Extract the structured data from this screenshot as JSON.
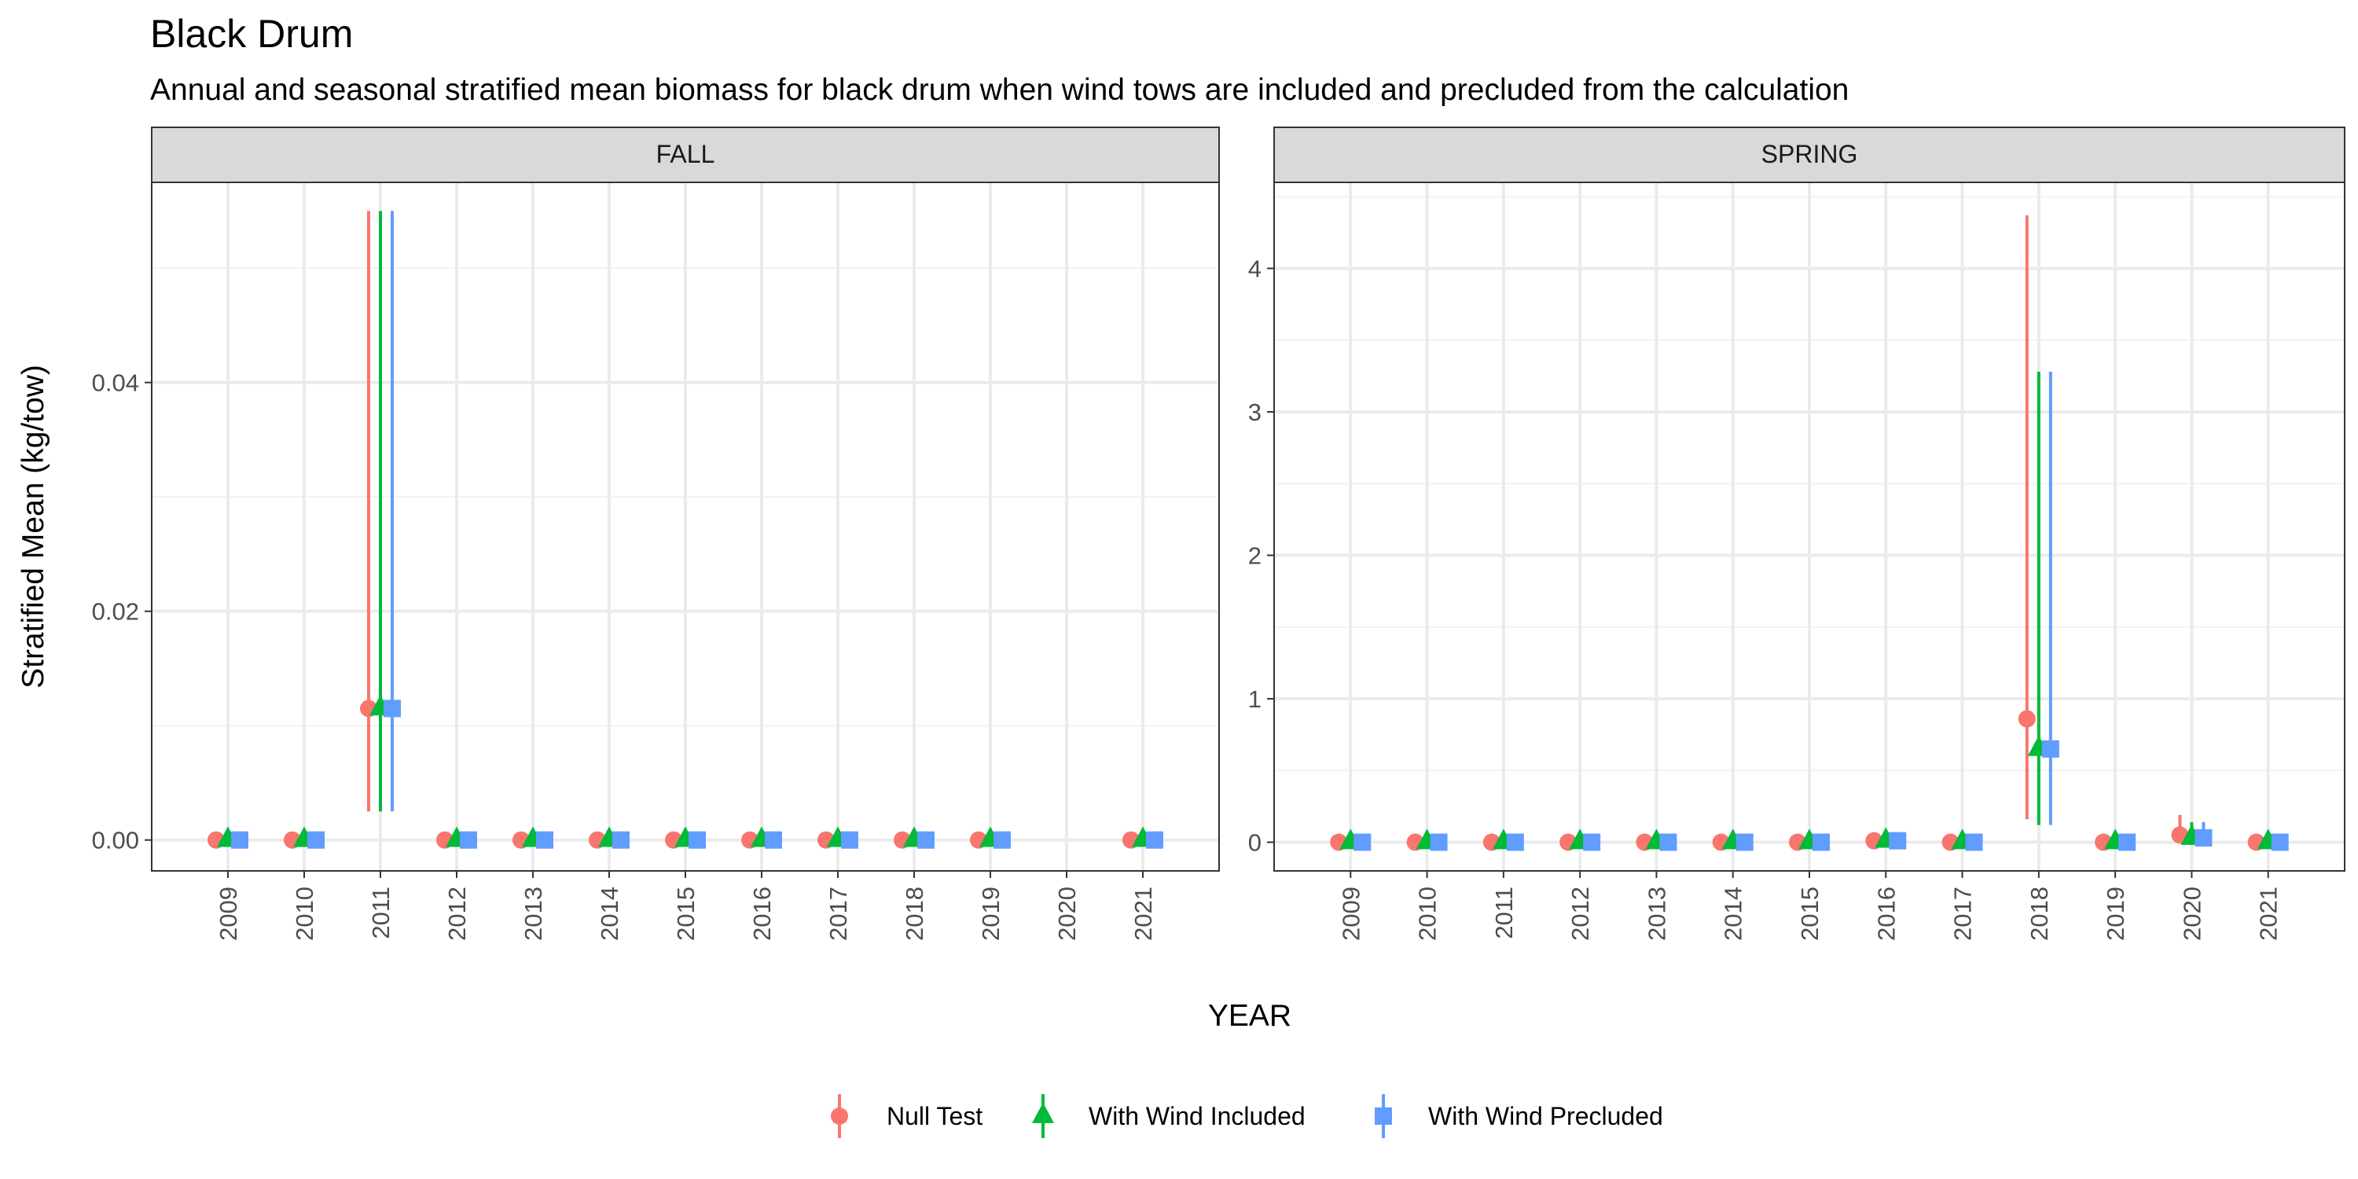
{
  "chart_data": {
    "type": "scatter",
    "title": "Black Drum",
    "subtitle": "Annual and seasonal stratified mean biomass for black drum when wind tows are included and precluded from the calculation",
    "xlabel": "YEAR",
    "ylabel": "Stratified Mean (kg/tow)",
    "grid": true,
    "legend_position": "bottom",
    "x_categories": [
      "2009",
      "2010",
      "2011",
      "2012",
      "2013",
      "2014",
      "2015",
      "2016",
      "2017",
      "2018",
      "2019",
      "2020",
      "2021"
    ],
    "series": [
      {
        "name": "Null Test",
        "color": "#F8766D",
        "marker": "circle"
      },
      {
        "name": "With Wind Included",
        "color": "#00BA38",
        "marker": "triangle"
      },
      {
        "name": "With Wind Precluded",
        "color": "#619CFF",
        "marker": "square"
      }
    ],
    "panels": [
      {
        "label": "FALL",
        "ylim": [
          -0.0027,
          0.0575
        ],
        "yticks": [
          {
            "value": 0.0,
            "label": "0.00"
          },
          {
            "value": 0.02,
            "label": "0.02"
          },
          {
            "value": 0.04,
            "label": "0.04"
          }
        ],
        "points": [
          {
            "x": "2009",
            "values": [
              0,
              0,
              0
            ],
            "lower": [
              0,
              0,
              0
            ],
            "upper": [
              0,
              0,
              0
            ]
          },
          {
            "x": "2010",
            "values": [
              0,
              0,
              0
            ],
            "lower": [
              0,
              0,
              0
            ],
            "upper": [
              0,
              0,
              0
            ]
          },
          {
            "x": "2011",
            "values": [
              0.0115,
              0.0115,
              0.0115
            ],
            "lower": [
              0.0025,
              0.0025,
              0.0025
            ],
            "upper": [
              0.055,
              0.055,
              0.055
            ]
          },
          {
            "x": "2012",
            "values": [
              0,
              0,
              0
            ],
            "lower": [
              0,
              0,
              0
            ],
            "upper": [
              0,
              0,
              0
            ]
          },
          {
            "x": "2013",
            "values": [
              0,
              0,
              0
            ],
            "lower": [
              0,
              0,
              0
            ],
            "upper": [
              0,
              0,
              0
            ]
          },
          {
            "x": "2014",
            "values": [
              0,
              0,
              0
            ],
            "lower": [
              0,
              0,
              0
            ],
            "upper": [
              0,
              0,
              0
            ]
          },
          {
            "x": "2015",
            "values": [
              0,
              0,
              0
            ],
            "lower": [
              0,
              0,
              0
            ],
            "upper": [
              0,
              0,
              0
            ]
          },
          {
            "x": "2016",
            "values": [
              0,
              0,
              0
            ],
            "lower": [
              0,
              0,
              0
            ],
            "upper": [
              0,
              0,
              0
            ]
          },
          {
            "x": "2017",
            "values": [
              0,
              0,
              0
            ],
            "lower": [
              0,
              0,
              0
            ],
            "upper": [
              0,
              0,
              0
            ]
          },
          {
            "x": "2018",
            "values": [
              0,
              0,
              0
            ],
            "lower": [
              0,
              0,
              0
            ],
            "upper": [
              0,
              0,
              0
            ]
          },
          {
            "x": "2019",
            "values": [
              0,
              0,
              0
            ],
            "lower": [
              0,
              0,
              0
            ],
            "upper": [
              0,
              0,
              0
            ]
          },
          {
            "x": "2021",
            "values": [
              0,
              0,
              0
            ],
            "lower": [
              0,
              0,
              0
            ],
            "upper": [
              0,
              0,
              0
            ]
          }
        ]
      },
      {
        "label": "SPRING",
        "ylim": [
          -0.2,
          4.6
        ],
        "yticks": [
          {
            "value": 0,
            "label": "0"
          },
          {
            "value": 1,
            "label": "1"
          },
          {
            "value": 2,
            "label": "2"
          },
          {
            "value": 3,
            "label": "3"
          },
          {
            "value": 4,
            "label": "4"
          }
        ],
        "points": [
          {
            "x": "2009",
            "values": [
              0,
              0,
              0
            ],
            "lower": [
              0,
              0,
              0
            ],
            "upper": [
              0,
              0,
              0
            ]
          },
          {
            "x": "2010",
            "values": [
              0,
              0,
              0
            ],
            "lower": [
              0,
              0,
              0
            ],
            "upper": [
              0,
              0,
              0
            ]
          },
          {
            "x": "2011",
            "values": [
              0,
              0,
              0
            ],
            "lower": [
              0,
              0,
              0
            ],
            "upper": [
              0,
              0,
              0
            ]
          },
          {
            "x": "2012",
            "values": [
              0,
              0,
              0
            ],
            "lower": [
              0,
              0,
              0
            ],
            "upper": [
              0,
              0,
              0
            ]
          },
          {
            "x": "2013",
            "values": [
              0,
              0,
              0
            ],
            "lower": [
              0,
              0,
              0
            ],
            "upper": [
              0,
              0,
              0
            ]
          },
          {
            "x": "2014",
            "values": [
              0,
              0,
              0
            ],
            "lower": [
              0,
              0,
              0
            ],
            "upper": [
              0,
              0,
              0
            ]
          },
          {
            "x": "2015",
            "values": [
              0,
              0,
              0
            ],
            "lower": [
              0,
              0,
              0
            ],
            "upper": [
              0,
              0,
              0
            ]
          },
          {
            "x": "2016",
            "values": [
              0.01,
              0.01,
              0.01
            ],
            "lower": [
              0.01,
              0.01,
              0.01
            ],
            "upper": [
              0.01,
              0.01,
              0.01
            ]
          },
          {
            "x": "2017",
            "values": [
              0,
              0,
              0
            ],
            "lower": [
              0,
              0,
              0
            ],
            "upper": [
              0,
              0,
              0
            ]
          },
          {
            "x": "2018",
            "values": [
              0.86,
              0.65,
              0.65
            ],
            "lower": [
              0.16,
              0.12,
              0.12
            ],
            "upper": [
              4.37,
              3.28,
              3.28
            ]
          },
          {
            "x": "2019",
            "values": [
              0,
              0,
              0
            ],
            "lower": [
              0,
              0,
              0
            ],
            "upper": [
              0,
              0,
              0
            ]
          },
          {
            "x": "2020",
            "values": [
              0.05,
              0.03,
              0.03
            ],
            "lower": [
              0.0,
              0.0,
              0.0
            ],
            "upper": [
              0.19,
              0.14,
              0.14
            ]
          },
          {
            "x": "2021",
            "values": [
              0,
              0,
              0
            ],
            "lower": [
              0,
              0,
              0
            ],
            "upper": [
              0,
              0,
              0
            ]
          }
        ]
      }
    ]
  }
}
